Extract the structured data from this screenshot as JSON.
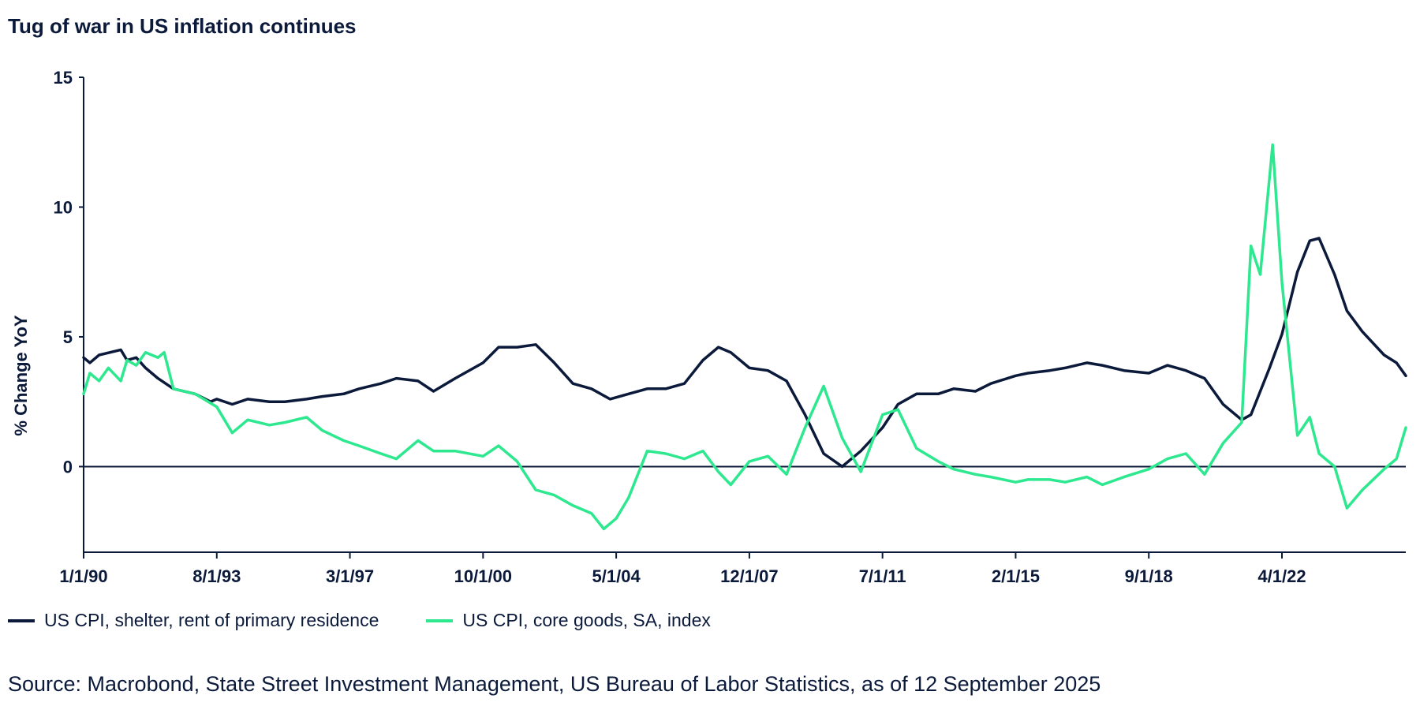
{
  "chart_data": {
    "type": "line",
    "title": "Tug of war in US inflation continues",
    "ylabel": "% Change YoY",
    "xlabel": "",
    "ylim": [
      -3.3,
      15
    ],
    "yticks": [
      0,
      5,
      10,
      15
    ],
    "x_start": "1990-01",
    "x_end": "2025-08",
    "xticks": [
      {
        "label": "1/1/90",
        "date": "1990-01"
      },
      {
        "label": "8/1/93",
        "date": "1993-08"
      },
      {
        "label": "3/1/97",
        "date": "1997-03"
      },
      {
        "label": "10/1/00",
        "date": "2000-10"
      },
      {
        "label": "5/1/04",
        "date": "2004-05"
      },
      {
        "label": "12/1/07",
        "date": "2007-12"
      },
      {
        "label": "7/1/11",
        "date": "2011-07"
      },
      {
        "label": "2/1/15",
        "date": "2015-02"
      },
      {
        "label": "9/1/18",
        "date": "2018-09"
      },
      {
        "label": "4/1/22",
        "date": "2022-04"
      }
    ],
    "zero_line": true,
    "legend_position": "bottom",
    "series": [
      {
        "name": "US CPI, shelter, rent of primary residence",
        "color": "#0b1a3a",
        "points": [
          [
            "1990-01",
            4.2
          ],
          [
            "1990-03",
            4.0
          ],
          [
            "1990-06",
            4.3
          ],
          [
            "1991-01",
            4.5
          ],
          [
            "1991-03",
            4.1
          ],
          [
            "1991-06",
            4.2
          ],
          [
            "1991-09",
            3.8
          ],
          [
            "1992-01",
            3.4
          ],
          [
            "1992-06",
            3.0
          ],
          [
            "1993-01",
            2.8
          ],
          [
            "1993-06",
            2.5
          ],
          [
            "1993-08",
            2.6
          ],
          [
            "1994-01",
            2.4
          ],
          [
            "1994-06",
            2.6
          ],
          [
            "1995-01",
            2.5
          ],
          [
            "1995-06",
            2.5
          ],
          [
            "1996-01",
            2.6
          ],
          [
            "1996-06",
            2.7
          ],
          [
            "1997-01",
            2.8
          ],
          [
            "1997-06",
            3.0
          ],
          [
            "1998-01",
            3.2
          ],
          [
            "1998-06",
            3.4
          ],
          [
            "1999-01",
            3.3
          ],
          [
            "1999-06",
            2.9
          ],
          [
            "2000-01",
            3.4
          ],
          [
            "2000-10",
            4.0
          ],
          [
            "2001-03",
            4.6
          ],
          [
            "2001-09",
            4.6
          ],
          [
            "2002-03",
            4.7
          ],
          [
            "2002-09",
            4.0
          ],
          [
            "2003-03",
            3.2
          ],
          [
            "2003-09",
            3.0
          ],
          [
            "2004-03",
            2.6
          ],
          [
            "2004-09",
            2.8
          ],
          [
            "2005-03",
            3.0
          ],
          [
            "2005-09",
            3.0
          ],
          [
            "2006-03",
            3.2
          ],
          [
            "2006-09",
            4.1
          ],
          [
            "2007-02",
            4.6
          ],
          [
            "2007-06",
            4.4
          ],
          [
            "2007-12",
            3.8
          ],
          [
            "2008-06",
            3.7
          ],
          [
            "2008-12",
            3.3
          ],
          [
            "2009-06",
            2.0
          ],
          [
            "2009-12",
            0.5
          ],
          [
            "2010-06",
            0.0
          ],
          [
            "2010-12",
            0.6
          ],
          [
            "2011-07",
            1.5
          ],
          [
            "2011-12",
            2.4
          ],
          [
            "2012-06",
            2.8
          ],
          [
            "2013-01",
            2.8
          ],
          [
            "2013-06",
            3.0
          ],
          [
            "2014-01",
            2.9
          ],
          [
            "2014-06",
            3.2
          ],
          [
            "2015-02",
            3.5
          ],
          [
            "2015-06",
            3.6
          ],
          [
            "2016-01",
            3.7
          ],
          [
            "2016-06",
            3.8
          ],
          [
            "2017-01",
            4.0
          ],
          [
            "2017-06",
            3.9
          ],
          [
            "2018-01",
            3.7
          ],
          [
            "2018-09",
            3.6
          ],
          [
            "2019-03",
            3.9
          ],
          [
            "2019-09",
            3.7
          ],
          [
            "2020-03",
            3.4
          ],
          [
            "2020-09",
            2.4
          ],
          [
            "2021-03",
            1.8
          ],
          [
            "2021-06",
            2.0
          ],
          [
            "2021-12",
            3.8
          ],
          [
            "2022-04",
            5.1
          ],
          [
            "2022-09",
            7.5
          ],
          [
            "2023-01",
            8.7
          ],
          [
            "2023-04",
            8.8
          ],
          [
            "2023-09",
            7.4
          ],
          [
            "2024-01",
            6.0
          ],
          [
            "2024-06",
            5.2
          ],
          [
            "2025-01",
            4.3
          ],
          [
            "2025-05",
            4.0
          ],
          [
            "2025-08",
            3.5
          ]
        ]
      },
      {
        "name": "US CPI, core goods, SA, index",
        "color": "#2de88f",
        "points": [
          [
            "1990-01",
            2.8
          ],
          [
            "1990-03",
            3.6
          ],
          [
            "1990-06",
            3.3
          ],
          [
            "1990-09",
            3.8
          ],
          [
            "1991-01",
            3.3
          ],
          [
            "1991-03",
            4.1
          ],
          [
            "1991-06",
            3.9
          ],
          [
            "1991-09",
            4.4
          ],
          [
            "1992-01",
            4.2
          ],
          [
            "1992-03",
            4.4
          ],
          [
            "1992-06",
            3.0
          ],
          [
            "1993-01",
            2.8
          ],
          [
            "1993-08",
            2.3
          ],
          [
            "1994-01",
            1.3
          ],
          [
            "1994-06",
            1.8
          ],
          [
            "1995-01",
            1.6
          ],
          [
            "1995-06",
            1.7
          ],
          [
            "1996-01",
            1.9
          ],
          [
            "1996-06",
            1.4
          ],
          [
            "1997-01",
            1.0
          ],
          [
            "1997-06",
            0.8
          ],
          [
            "1998-01",
            0.5
          ],
          [
            "1998-06",
            0.3
          ],
          [
            "1999-01",
            1.0
          ],
          [
            "1999-06",
            0.6
          ],
          [
            "2000-01",
            0.6
          ],
          [
            "2000-10",
            0.4
          ],
          [
            "2001-03",
            0.8
          ],
          [
            "2001-09",
            0.2
          ],
          [
            "2002-03",
            -0.9
          ],
          [
            "2002-09",
            -1.1
          ],
          [
            "2003-03",
            -1.5
          ],
          [
            "2003-09",
            -1.8
          ],
          [
            "2004-01",
            -2.4
          ],
          [
            "2004-05",
            -2.0
          ],
          [
            "2004-09",
            -1.2
          ],
          [
            "2005-03",
            0.6
          ],
          [
            "2005-09",
            0.5
          ],
          [
            "2006-03",
            0.3
          ],
          [
            "2006-09",
            0.6
          ],
          [
            "2007-02",
            -0.2
          ],
          [
            "2007-06",
            -0.7
          ],
          [
            "2007-12",
            0.2
          ],
          [
            "2008-06",
            0.4
          ],
          [
            "2008-12",
            -0.3
          ],
          [
            "2009-06",
            1.5
          ],
          [
            "2009-12",
            3.1
          ],
          [
            "2010-06",
            1.1
          ],
          [
            "2010-12",
            -0.2
          ],
          [
            "2011-07",
            2.0
          ],
          [
            "2011-12",
            2.2
          ],
          [
            "2012-06",
            0.7
          ],
          [
            "2013-01",
            0.2
          ],
          [
            "2013-06",
            -0.1
          ],
          [
            "2014-01",
            -0.3
          ],
          [
            "2014-06",
            -0.4
          ],
          [
            "2015-02",
            -0.6
          ],
          [
            "2015-06",
            -0.5
          ],
          [
            "2016-01",
            -0.5
          ],
          [
            "2016-06",
            -0.6
          ],
          [
            "2017-01",
            -0.4
          ],
          [
            "2017-06",
            -0.7
          ],
          [
            "2018-01",
            -0.4
          ],
          [
            "2018-09",
            -0.1
          ],
          [
            "2019-03",
            0.3
          ],
          [
            "2019-09",
            0.5
          ],
          [
            "2020-03",
            -0.3
          ],
          [
            "2020-09",
            0.9
          ],
          [
            "2021-03",
            1.7
          ],
          [
            "2021-06",
            8.5
          ],
          [
            "2021-09",
            7.4
          ],
          [
            "2022-01",
            12.4
          ],
          [
            "2022-04",
            7.1
          ],
          [
            "2022-09",
            1.2
          ],
          [
            "2023-01",
            1.9
          ],
          [
            "2023-04",
            0.5
          ],
          [
            "2023-09",
            0.0
          ],
          [
            "2024-01",
            -1.6
          ],
          [
            "2024-06",
            -0.9
          ],
          [
            "2025-01",
            -0.1
          ],
          [
            "2025-05",
            0.3
          ],
          [
            "2025-08",
            1.5
          ]
        ]
      }
    ]
  },
  "source_text": "Source: Macrobond, State Street Investment Management, US Bureau of Labor Statistics, as of 12 September 2025"
}
